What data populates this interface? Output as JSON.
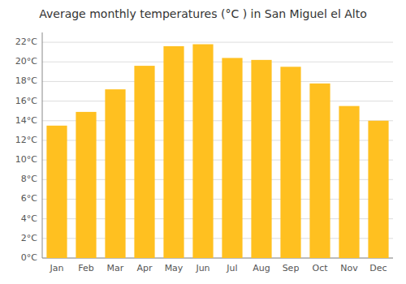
{
  "chart_data": {
    "type": "bar",
    "title": "Average monthly temperatures (°C ) in San Miguel el Alto",
    "categories": [
      "Jan",
      "Feb",
      "Mar",
      "Apr",
      "May",
      "Jun",
      "Jul",
      "Aug",
      "Sep",
      "Oct",
      "Nov",
      "Dec"
    ],
    "values": [
      13.5,
      14.9,
      17.2,
      19.6,
      21.6,
      21.8,
      20.4,
      20.2,
      19.5,
      17.8,
      15.5,
      14.0
    ],
    "color": "#FFC020",
    "ylim": [
      0,
      23
    ],
    "yticks": [
      {
        "value": 0,
        "label": "0°C"
      },
      {
        "value": 2,
        "label": "2°C"
      },
      {
        "value": 4,
        "label": "4°C"
      },
      {
        "value": 6,
        "label": "6°C"
      },
      {
        "value": 8,
        "label": "8°C"
      },
      {
        "value": 10,
        "label": "10°C"
      },
      {
        "value": 12,
        "label": "12°C"
      },
      {
        "value": 14,
        "label": "14°C"
      },
      {
        "value": 16,
        "label": "16°C"
      },
      {
        "value": 18,
        "label": "18°C"
      },
      {
        "value": 20,
        "label": "20°C"
      },
      {
        "value": 22,
        "label": "22°C"
      }
    ],
    "grid": true
  }
}
